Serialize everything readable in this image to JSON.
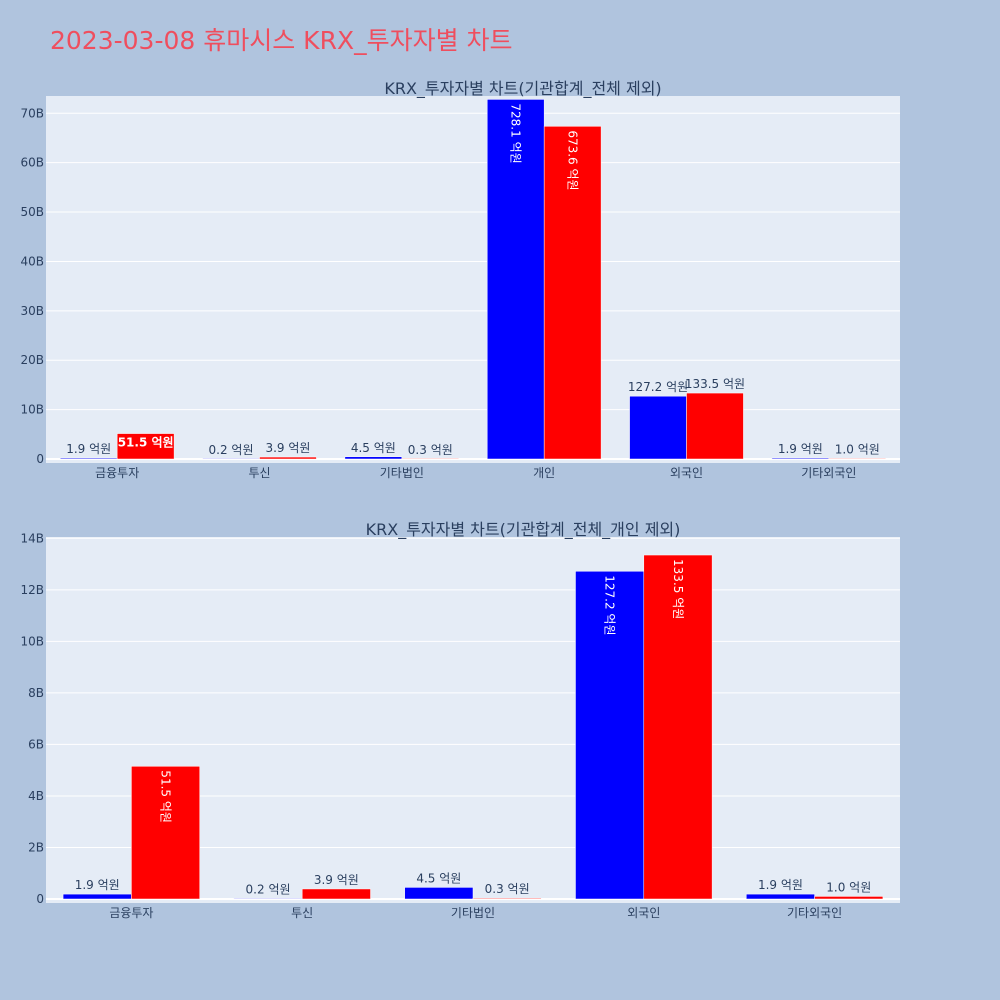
{
  "page_title": "2023-03-08 휴마시스 KRX_투자자별 차트",
  "colors": {
    "series_a": "#0000ff",
    "series_b": "#ff0000",
    "plot_bg": "#e5ecf6",
    "paper_bg": "#b0c4de",
    "title": "#ef4e5e"
  },
  "chart_data": [
    {
      "type": "bar",
      "title": "KRX_투자자별 차트(기관합계_전체 제외)",
      "categories": [
        "금융투자",
        "투신",
        "기타법인",
        "개인",
        "외국인",
        "기타외국인"
      ],
      "series": [
        {
          "values": [
            0.19,
            0.02,
            0.45,
            72.81,
            12.72,
            0.19
          ],
          "labels": [
            "1.9 억원",
            "0.2 억원",
            "4.5 억원",
            "728.1 억원",
            "127.2 억원",
            "1.9 억원"
          ],
          "color": "#0000ff"
        },
        {
          "values": [
            5.15,
            0.39,
            0.03,
            67.36,
            13.35,
            0.1
          ],
          "labels": [
            "51.5 억원",
            "3.9 억원",
            "0.3 억원",
            "673.6 억원",
            "133.5 억원",
            "1.0 억원"
          ],
          "color": "#ff0000"
        }
      ],
      "ylim": [
        0,
        73.5
      ],
      "yticks": [
        0,
        10,
        20,
        30,
        40,
        50,
        60,
        70
      ],
      "ytick_labels": [
        "0",
        "10B",
        "20B",
        "30B",
        "40B",
        "50B",
        "60B",
        "70B"
      ],
      "grid": true
    },
    {
      "type": "bar",
      "title": "KRX_투자자별 차트(기관합계_전체_개인 제외)",
      "categories": [
        "금융투자",
        "투신",
        "기타법인",
        "외국인",
        "기타외국인"
      ],
      "series": [
        {
          "values": [
            0.19,
            0.02,
            0.45,
            12.72,
            0.19
          ],
          "labels": [
            "1.9 억원",
            "0.2 억원",
            "4.5 억원",
            "127.2 억원",
            "1.9 억원"
          ],
          "color": "#0000ff"
        },
        {
          "values": [
            5.15,
            0.39,
            0.03,
            13.35,
            0.1
          ],
          "labels": [
            "51.5 억원",
            "3.9 억원",
            "0.3 억원",
            "133.5 억원",
            "1.0 억원"
          ],
          "color": "#ff0000"
        }
      ],
      "ylim": [
        0,
        14.05
      ],
      "yticks": [
        0,
        2,
        4,
        6,
        8,
        10,
        12,
        14
      ],
      "ytick_labels": [
        "0",
        "2B",
        "4B",
        "6B",
        "8B",
        "10B",
        "12B",
        "14B"
      ],
      "grid": true
    }
  ]
}
